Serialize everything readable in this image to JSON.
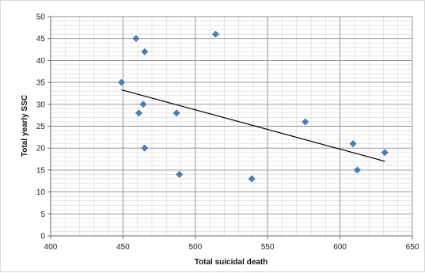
{
  "chart_data": {
    "type": "scatter",
    "title": "",
    "xlabel": "Total suicidal death",
    "ylabel": "Total yearly SSC",
    "xlim": [
      400,
      650
    ],
    "ylim": [
      0,
      50
    ],
    "x_major_ticks": [
      400,
      450,
      500,
      550,
      600,
      650
    ],
    "y_major_ticks": [
      0,
      5,
      10,
      15,
      20,
      25,
      30,
      35,
      40,
      45,
      50
    ],
    "x_minor_step": 10,
    "y_minor_step": 1,
    "grid": true,
    "legend": "none",
    "marker": "diamond",
    "series": [
      {
        "color": "#4a7ebb",
        "points": [
          {
            "x": 449,
            "y": 35
          },
          {
            "x": 459,
            "y": 45
          },
          {
            "x": 461,
            "y": 28
          },
          {
            "x": 464,
            "y": 30
          },
          {
            "x": 465,
            "y": 42
          },
          {
            "x": 465,
            "y": 20
          },
          {
            "x": 487,
            "y": 28
          },
          {
            "x": 489,
            "y": 14
          },
          {
            "x": 514,
            "y": 46
          },
          {
            "x": 539,
            "y": 13
          },
          {
            "x": 576,
            "y": 26
          },
          {
            "x": 609,
            "y": 21
          },
          {
            "x": 612,
            "y": 15
          },
          {
            "x": 631,
            "y": 19
          }
        ]
      }
    ],
    "trendline": {
      "type": "linear",
      "color": "#000000",
      "from": {
        "x": 449,
        "y": 33.3
      },
      "to": {
        "x": 631,
        "y": 17
      }
    }
  }
}
